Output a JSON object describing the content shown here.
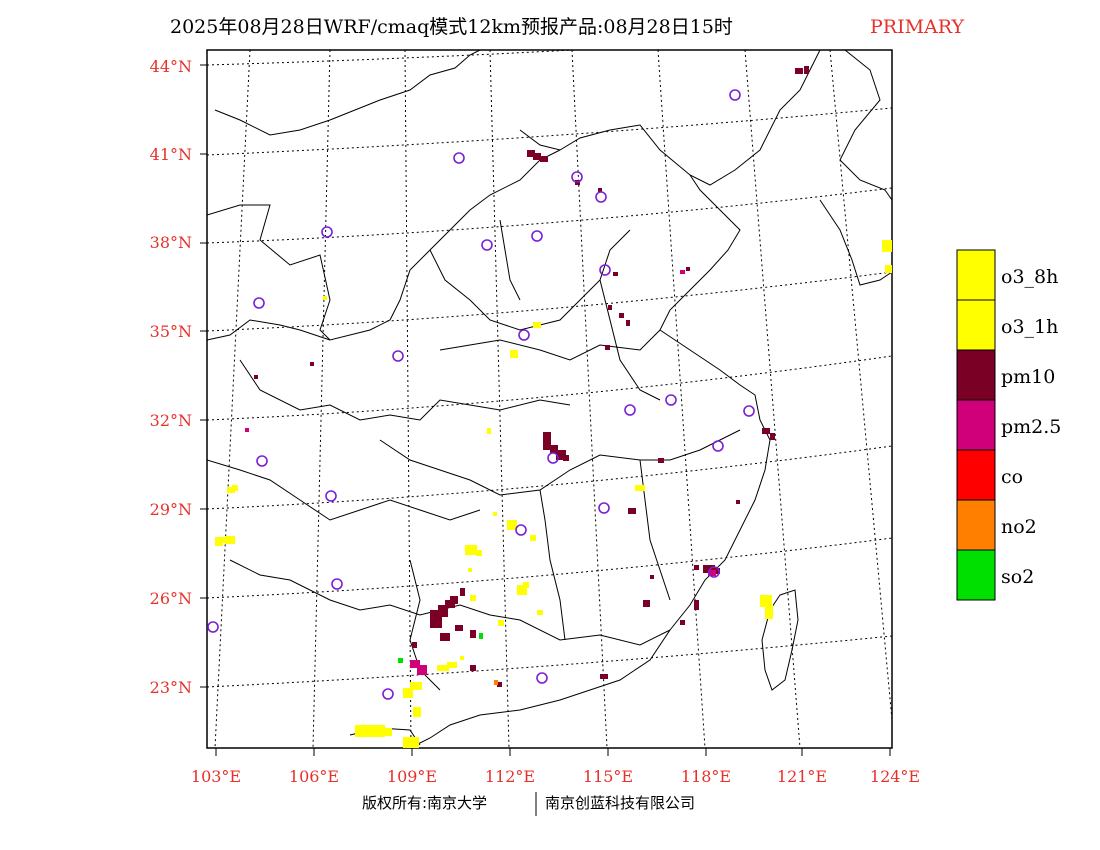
{
  "title": {
    "main": "2025年08月28日WRF/cmaq模式12km预报产品:08月28日15时",
    "tag": "PRIMARY"
  },
  "lat_labels": [
    "44°N",
    "41°N",
    "38°N",
    "35°N",
    "32°N",
    "29°N",
    "26°N",
    "23°N"
  ],
  "lon_labels": [
    "103°E",
    "106°E",
    "109°E",
    "112°E",
    "115°E",
    "118°E",
    "121°E",
    "124°E"
  ],
  "legend": [
    {
      "label": "o3_8h",
      "color": "#ffff00"
    },
    {
      "label": "o3_1h",
      "color": "#ffff00"
    },
    {
      "label": "pm10",
      "color": "#7a0026"
    },
    {
      "label": "pm2.5",
      "color": "#d0007a"
    },
    {
      "label": "co",
      "color": "#ff0000"
    },
    {
      "label": "no2",
      "color": "#ff7f00"
    },
    {
      "label": "so2",
      "color": "#00e000"
    }
  ],
  "footer": {
    "left": "版权所有:南京大学",
    "right": "南京创蓝科技有限公司"
  }
}
